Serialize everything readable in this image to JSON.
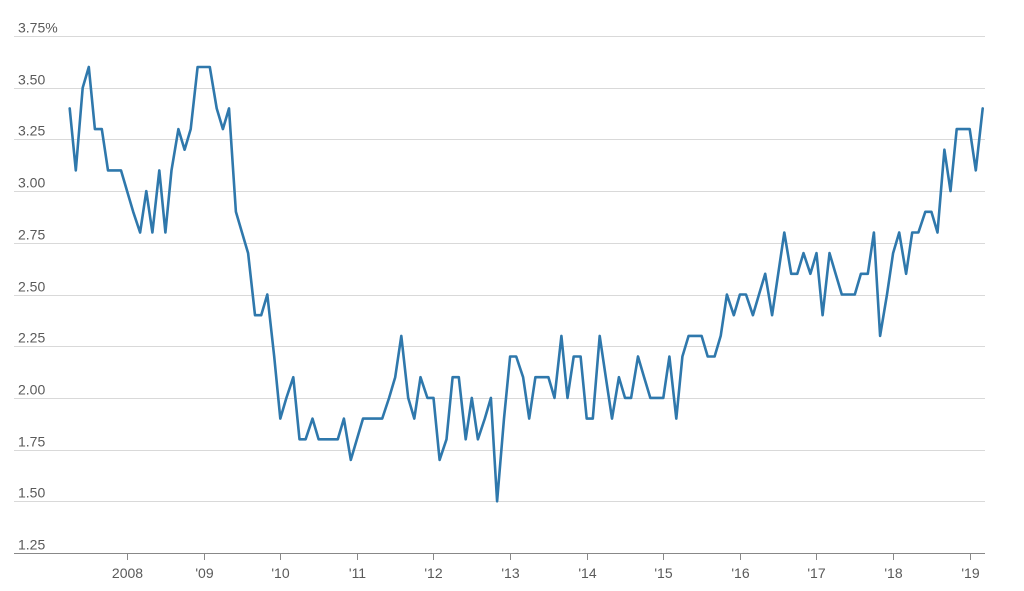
{
  "chart_data": {
    "type": "line",
    "title": "",
    "xlabel": "",
    "ylabel": "",
    "ylim": [
      1.25,
      3.75
    ],
    "xlim": [
      2007.15,
      2019.2
    ],
    "grid": "horizontal",
    "yticks": [
      {
        "value": 3.75,
        "label": "3.75%"
      },
      {
        "value": 3.5,
        "label": "3.50"
      },
      {
        "value": 3.25,
        "label": "3.25"
      },
      {
        "value": 3.0,
        "label": "3.00"
      },
      {
        "value": 2.75,
        "label": "2.75"
      },
      {
        "value": 2.5,
        "label": "2.50"
      },
      {
        "value": 2.25,
        "label": "2.25"
      },
      {
        "value": 2.0,
        "label": "2.00"
      },
      {
        "value": 1.75,
        "label": "1.75"
      },
      {
        "value": 1.5,
        "label": "1.50"
      },
      {
        "value": 1.25,
        "label": "1.25"
      }
    ],
    "xticks": [
      {
        "value": 2008,
        "label": "2008"
      },
      {
        "value": 2009,
        "label": "'09"
      },
      {
        "value": 2010,
        "label": "'10"
      },
      {
        "value": 2011,
        "label": "'11"
      },
      {
        "value": 2012,
        "label": "'12"
      },
      {
        "value": 2013,
        "label": "'13"
      },
      {
        "value": 2014,
        "label": "'14"
      },
      {
        "value": 2015,
        "label": "'15"
      },
      {
        "value": 2016,
        "label": "'16"
      },
      {
        "value": 2017,
        "label": "'17"
      },
      {
        "value": 2018,
        "label": "'18"
      },
      {
        "value": 2019,
        "label": "'19"
      }
    ],
    "series": [
      {
        "color": "#2f78ac",
        "points": [
          [
            2007.25,
            3.4
          ],
          [
            2007.33,
            3.1
          ],
          [
            2007.42,
            3.5
          ],
          [
            2007.5,
            3.6
          ],
          [
            2007.58,
            3.3
          ],
          [
            2007.67,
            3.3
          ],
          [
            2007.75,
            3.1
          ],
          [
            2007.83,
            3.1
          ],
          [
            2007.92,
            3.1
          ],
          [
            2008.0,
            3.0
          ],
          [
            2008.08,
            2.9
          ],
          [
            2008.17,
            2.8
          ],
          [
            2008.25,
            3.0
          ],
          [
            2008.33,
            2.8
          ],
          [
            2008.42,
            3.1
          ],
          [
            2008.5,
            2.8
          ],
          [
            2008.58,
            3.1
          ],
          [
            2008.67,
            3.3
          ],
          [
            2008.75,
            3.2
          ],
          [
            2008.83,
            3.3
          ],
          [
            2008.92,
            3.6
          ],
          [
            2009.0,
            3.6
          ],
          [
            2009.08,
            3.6
          ],
          [
            2009.17,
            3.4
          ],
          [
            2009.25,
            3.3
          ],
          [
            2009.33,
            3.4
          ],
          [
            2009.42,
            2.9
          ],
          [
            2009.5,
            2.8
          ],
          [
            2009.58,
            2.7
          ],
          [
            2009.67,
            2.4
          ],
          [
            2009.75,
            2.4
          ],
          [
            2009.83,
            2.5
          ],
          [
            2009.92,
            2.2
          ],
          [
            2010.0,
            1.9
          ],
          [
            2010.08,
            2.0
          ],
          [
            2010.17,
            2.1
          ],
          [
            2010.25,
            1.8
          ],
          [
            2010.33,
            1.8
          ],
          [
            2010.42,
            1.9
          ],
          [
            2010.5,
            1.8
          ],
          [
            2010.58,
            1.8
          ],
          [
            2010.67,
            1.8
          ],
          [
            2010.75,
            1.8
          ],
          [
            2010.83,
            1.9
          ],
          [
            2010.92,
            1.7
          ],
          [
            2011.0,
            1.8
          ],
          [
            2011.08,
            1.9
          ],
          [
            2011.17,
            1.9
          ],
          [
            2011.25,
            1.9
          ],
          [
            2011.33,
            1.9
          ],
          [
            2011.42,
            2.0
          ],
          [
            2011.5,
            2.1
          ],
          [
            2011.58,
            2.3
          ],
          [
            2011.67,
            2.0
          ],
          [
            2011.75,
            1.9
          ],
          [
            2011.83,
            2.1
          ],
          [
            2011.92,
            2.0
          ],
          [
            2012.0,
            2.0
          ],
          [
            2012.08,
            1.7
          ],
          [
            2012.17,
            1.8
          ],
          [
            2012.25,
            2.1
          ],
          [
            2012.33,
            2.1
          ],
          [
            2012.42,
            1.8
          ],
          [
            2012.5,
            2.0
          ],
          [
            2012.58,
            1.8
          ],
          [
            2012.67,
            1.9
          ],
          [
            2012.75,
            2.0
          ],
          [
            2012.83,
            1.5
          ],
          [
            2012.92,
            1.9
          ],
          [
            2013.0,
            2.2
          ],
          [
            2013.08,
            2.2
          ],
          [
            2013.17,
            2.1
          ],
          [
            2013.25,
            1.9
          ],
          [
            2013.33,
            2.1
          ],
          [
            2013.42,
            2.1
          ],
          [
            2013.5,
            2.1
          ],
          [
            2013.58,
            2.0
          ],
          [
            2013.67,
            2.3
          ],
          [
            2013.75,
            2.0
          ],
          [
            2013.83,
            2.2
          ],
          [
            2013.92,
            2.2
          ],
          [
            2014.0,
            1.9
          ],
          [
            2014.08,
            1.9
          ],
          [
            2014.17,
            2.3
          ],
          [
            2014.25,
            2.1
          ],
          [
            2014.33,
            1.9
          ],
          [
            2014.42,
            2.1
          ],
          [
            2014.5,
            2.0
          ],
          [
            2014.58,
            2.0
          ],
          [
            2014.67,
            2.2
          ],
          [
            2014.75,
            2.1
          ],
          [
            2014.83,
            2.0
          ],
          [
            2014.92,
            2.0
          ],
          [
            2015.0,
            2.0
          ],
          [
            2015.08,
            2.2
          ],
          [
            2015.17,
            1.9
          ],
          [
            2015.25,
            2.2
          ],
          [
            2015.33,
            2.3
          ],
          [
            2015.42,
            2.3
          ],
          [
            2015.5,
            2.3
          ],
          [
            2015.58,
            2.2
          ],
          [
            2015.67,
            2.2
          ],
          [
            2015.75,
            2.3
          ],
          [
            2015.83,
            2.5
          ],
          [
            2015.92,
            2.4
          ],
          [
            2016.0,
            2.5
          ],
          [
            2016.08,
            2.5
          ],
          [
            2016.17,
            2.4
          ],
          [
            2016.25,
            2.5
          ],
          [
            2016.33,
            2.6
          ],
          [
            2016.42,
            2.4
          ],
          [
            2016.5,
            2.6
          ],
          [
            2016.58,
            2.8
          ],
          [
            2016.67,
            2.6
          ],
          [
            2016.75,
            2.6
          ],
          [
            2016.83,
            2.7
          ],
          [
            2016.92,
            2.6
          ],
          [
            2017.0,
            2.7
          ],
          [
            2017.08,
            2.4
          ],
          [
            2017.17,
            2.7
          ],
          [
            2017.25,
            2.6
          ],
          [
            2017.33,
            2.5
          ],
          [
            2017.42,
            2.5
          ],
          [
            2017.5,
            2.5
          ],
          [
            2017.58,
            2.6
          ],
          [
            2017.67,
            2.6
          ],
          [
            2017.75,
            2.8
          ],
          [
            2017.83,
            2.3
          ],
          [
            2017.92,
            2.5
          ],
          [
            2018.0,
            2.7
          ],
          [
            2018.08,
            2.8
          ],
          [
            2018.17,
            2.6
          ],
          [
            2018.25,
            2.8
          ],
          [
            2018.33,
            2.8
          ],
          [
            2018.42,
            2.9
          ],
          [
            2018.5,
            2.9
          ],
          [
            2018.58,
            2.8
          ],
          [
            2018.67,
            3.2
          ],
          [
            2018.75,
            3.0
          ],
          [
            2018.83,
            3.3
          ],
          [
            2018.92,
            3.3
          ],
          [
            2019.0,
            3.3
          ],
          [
            2019.08,
            3.1
          ],
          [
            2019.17,
            3.4
          ]
        ]
      }
    ]
  }
}
